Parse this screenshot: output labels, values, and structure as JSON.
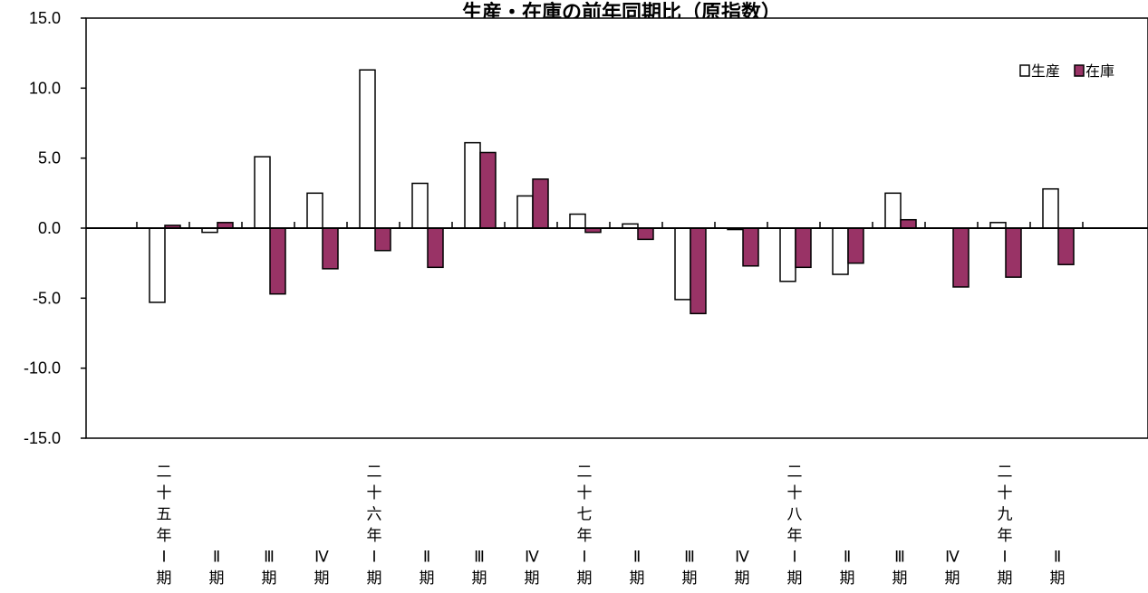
{
  "chart_data": {
    "type": "bar",
    "title": "生産・在庫の前年同期比（原指数）",
    "ylim": [
      -15,
      15
    ],
    "yticks": [
      "15.0",
      "10.0",
      "5.0",
      "0.0",
      "-5.0",
      "-10.0",
      "-15.0"
    ],
    "grid": false,
    "legend_position": "top-right",
    "categories": [
      [
        "二",
        "十",
        "五",
        "年",
        "Ⅰ",
        "期"
      ],
      [
        "Ⅱ",
        "期"
      ],
      [
        "Ⅲ",
        "期"
      ],
      [
        "Ⅳ",
        "期"
      ],
      [
        "二",
        "十",
        "六",
        "年",
        "Ⅰ",
        "期"
      ],
      [
        "Ⅱ",
        "期"
      ],
      [
        "Ⅲ",
        "期"
      ],
      [
        "Ⅳ",
        "期"
      ],
      [
        "二",
        "十",
        "七",
        "年",
        "Ⅰ",
        "期"
      ],
      [
        "Ⅱ",
        "期"
      ],
      [
        "Ⅲ",
        "期"
      ],
      [
        "Ⅳ",
        "期"
      ],
      [
        "二",
        "十",
        "八",
        "年",
        "Ⅰ",
        "期"
      ],
      [
        "Ⅱ",
        "期"
      ],
      [
        "Ⅲ",
        "期"
      ],
      [
        "Ⅳ",
        "期"
      ],
      [
        "二",
        "十",
        "九",
        "年",
        "Ⅰ",
        "期"
      ],
      [
        "Ⅱ",
        "期"
      ]
    ],
    "series": [
      {
        "name": "生産",
        "color": "#ffffff",
        "values": [
          -5.3,
          -0.3,
          5.1,
          2.5,
          11.3,
          3.2,
          6.1,
          2.3,
          1.0,
          0.3,
          -5.1,
          -0.1,
          -3.8,
          -3.3,
          2.5,
          0.0,
          0.4,
          2.8
        ]
      },
      {
        "name": "在庫",
        "color": "#993366",
        "values": [
          0.2,
          0.4,
          -4.7,
          -2.9,
          -1.6,
          -2.8,
          5.4,
          3.5,
          -0.3,
          -0.8,
          -6.1,
          -2.7,
          -2.8,
          -2.5,
          0.6,
          -4.2,
          -3.5,
          -2.6
        ]
      }
    ]
  }
}
